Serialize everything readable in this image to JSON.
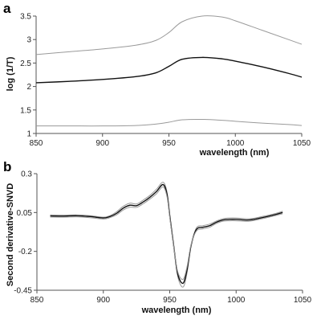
{
  "chart_data": [
    {
      "type": "line",
      "panel_label": "a",
      "xlabel": "wavelength (nm)",
      "ylabel": "log (1/T)",
      "xlim": [
        850,
        1050
      ],
      "ylim": [
        1,
        3.5
      ],
      "xticks": [
        "850",
        "900",
        "950",
        "1000",
        "1050"
      ],
      "yticks": [
        "1",
        "1.5",
        "2",
        "2.5",
        "3",
        "3.5"
      ],
      "x": [
        850,
        875,
        900,
        925,
        940,
        950,
        960,
        975,
        990,
        1000,
        1020,
        1040,
        1050
      ],
      "series": [
        {
          "color": "#9a9a9a",
          "values": [
            2.68,
            2.74,
            2.8,
            2.88,
            2.98,
            3.15,
            3.38,
            3.5,
            3.48,
            3.4,
            3.2,
            3.0,
            2.9
          ]
        },
        {
          "color": "#111111",
          "values": [
            2.08,
            2.11,
            2.15,
            2.21,
            2.29,
            2.43,
            2.58,
            2.62,
            2.59,
            2.54,
            2.42,
            2.28,
            2.2
          ]
        },
        {
          "color": "#9a9a9a",
          "values": [
            1.16,
            1.16,
            1.16,
            1.17,
            1.2,
            1.24,
            1.29,
            1.3,
            1.28,
            1.26,
            1.22,
            1.19,
            1.17
          ]
        }
      ]
    },
    {
      "type": "line",
      "panel_label": "b",
      "xlabel": "wavelength (nm)",
      "ylabel": "Second derivative-SNVD",
      "xlim": [
        850,
        1050
      ],
      "ylim": [
        -0.45,
        0.3
      ],
      "xticks": [
        "850",
        "900",
        "950",
        "1000",
        "1050"
      ],
      "yticks": [
        "0.3",
        "0.05",
        "-0.2",
        "-0.45"
      ],
      "x": [
        860,
        870,
        880,
        890,
        900,
        905,
        910,
        915,
        920,
        925,
        930,
        935,
        940,
        945,
        948,
        950,
        953,
        956,
        960,
        963,
        966,
        970,
        975,
        980,
        985,
        990,
        995,
        1000,
        1010,
        1020,
        1030,
        1035
      ],
      "series": [
        {
          "color": "#9a9a9a",
          "values": [
            0.035,
            0.033,
            0.035,
            0.03,
            0.02,
            0.03,
            0.055,
            0.09,
            0.11,
            0.105,
            0.13,
            0.16,
            0.2,
            0.245,
            0.18,
            0.04,
            -0.16,
            -0.36,
            -0.43,
            -0.34,
            -0.17,
            -0.05,
            -0.035,
            -0.025,
            -0.005,
            0.01,
            0.015,
            0.015,
            0.01,
            0.025,
            0.045,
            0.058
          ]
        },
        {
          "color": "#111111",
          "values": [
            0.028,
            0.027,
            0.029,
            0.024,
            0.015,
            0.024,
            0.045,
            0.078,
            0.097,
            0.094,
            0.118,
            0.148,
            0.185,
            0.23,
            0.165,
            0.03,
            -0.165,
            -0.345,
            -0.405,
            -0.32,
            -0.165,
            -0.06,
            -0.045,
            -0.035,
            -0.013,
            0.002,
            0.006,
            0.006,
            0.002,
            0.018,
            0.038,
            0.05
          ]
        },
        {
          "color": "#9a9a9a",
          "values": [
            0.021,
            0.02,
            0.022,
            0.017,
            0.008,
            0.017,
            0.035,
            0.066,
            0.084,
            0.083,
            0.106,
            0.136,
            0.17,
            0.215,
            0.15,
            0.02,
            -0.17,
            -0.33,
            -0.38,
            -0.3,
            -0.16,
            -0.07,
            -0.055,
            -0.045,
            -0.021,
            -0.006,
            -0.003,
            -0.003,
            -0.006,
            0.011,
            0.031,
            0.042
          ]
        }
      ]
    }
  ]
}
